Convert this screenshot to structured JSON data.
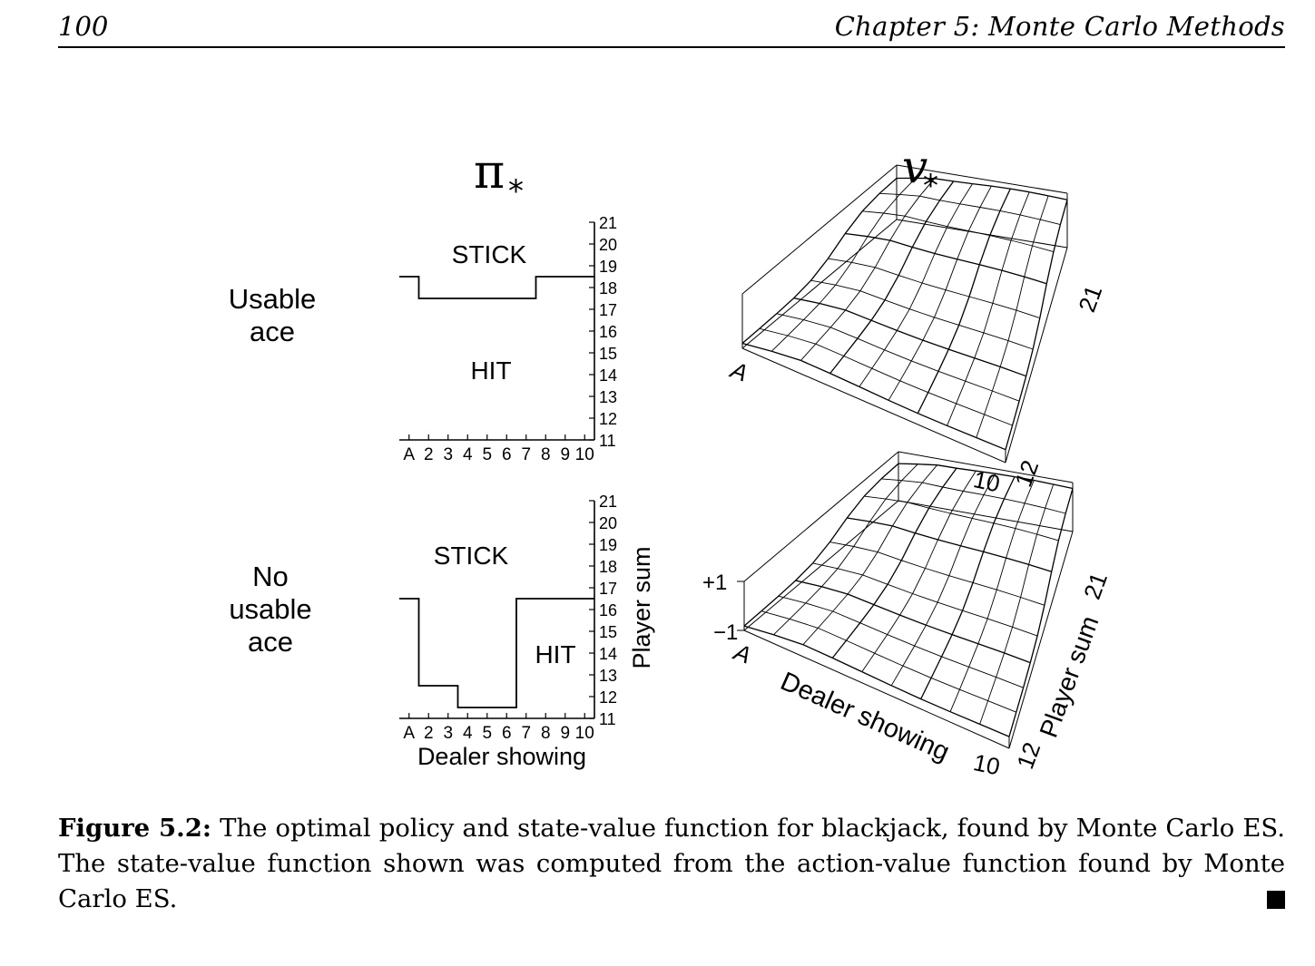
{
  "header": {
    "page_number": "100",
    "running_head": "Chapter 5: Monte Carlo Methods"
  },
  "figure": {
    "policy_heading": "π",
    "value_heading": "v",
    "star": "*",
    "rows": [
      {
        "label_lines": [
          "Usable",
          "ace"
        ],
        "stick": "STICK",
        "hit": "HIT"
      },
      {
        "label_lines": [
          "No",
          "usable",
          "ace"
        ],
        "stick": "STICK",
        "hit": "HIT"
      }
    ],
    "dealer_ticks": [
      "A",
      "2",
      "3",
      "4",
      "5",
      "6",
      "7",
      "8",
      "9",
      "10"
    ],
    "player_ticks": [
      "11",
      "12",
      "13",
      "14",
      "15",
      "16",
      "17",
      "18",
      "19",
      "20",
      "21"
    ],
    "x_axis_label": "Dealer showing",
    "y_axis_label": "Player sum",
    "surface_labels": {
      "ace": "A",
      "ten": "10",
      "twelve": "12",
      "twentyone": "21",
      "plus_one": "+1",
      "minus_one": "−1",
      "dealer_showing": "Dealer showing",
      "player_sum": "Player sum"
    }
  },
  "chart_data": [
    {
      "type": "line",
      "panel": "policy-usable-ace",
      "x": [
        "A",
        "2",
        "3",
        "4",
        "5",
        "6",
        "7",
        "8",
        "9",
        "10"
      ],
      "stick_threshold": [
        19,
        18,
        18,
        18,
        18,
        18,
        18,
        19,
        19,
        19
      ],
      "xlabel": "",
      "ylabel": "",
      "ylim": [
        11,
        21
      ],
      "regions": [
        "STICK",
        "HIT"
      ]
    },
    {
      "type": "line",
      "panel": "policy-no-usable-ace",
      "x": [
        "A",
        "2",
        "3",
        "4",
        "5",
        "6",
        "7",
        "8",
        "9",
        "10"
      ],
      "stick_threshold": [
        17,
        13,
        13,
        12,
        12,
        12,
        17,
        17,
        17,
        17
      ],
      "xlabel": "Dealer showing",
      "ylabel": "Player sum",
      "ylim": [
        11,
        21
      ],
      "regions": [
        "STICK",
        "HIT"
      ]
    },
    {
      "type": "heatmap",
      "panel": "value-usable-ace",
      "x": [
        "A",
        "10"
      ],
      "y": [
        "12",
        "21"
      ],
      "zlim": [
        -1,
        1
      ]
    },
    {
      "type": "heatmap",
      "panel": "value-no-usable-ace",
      "x": [
        "A",
        "10"
      ],
      "y": [
        "12",
        "21"
      ],
      "zlim": [
        -1,
        1
      ],
      "xlabel": "Dealer showing",
      "ylabel": "Player sum",
      "zticks": [
        "+1",
        "−1"
      ]
    }
  ],
  "caption": {
    "label": "Figure 5.2:",
    "text": "The optimal policy and state-value function for blackjack, found by Monte Carlo ES. The state-value function shown was computed from the action-value function found by Monte Carlo ES."
  }
}
